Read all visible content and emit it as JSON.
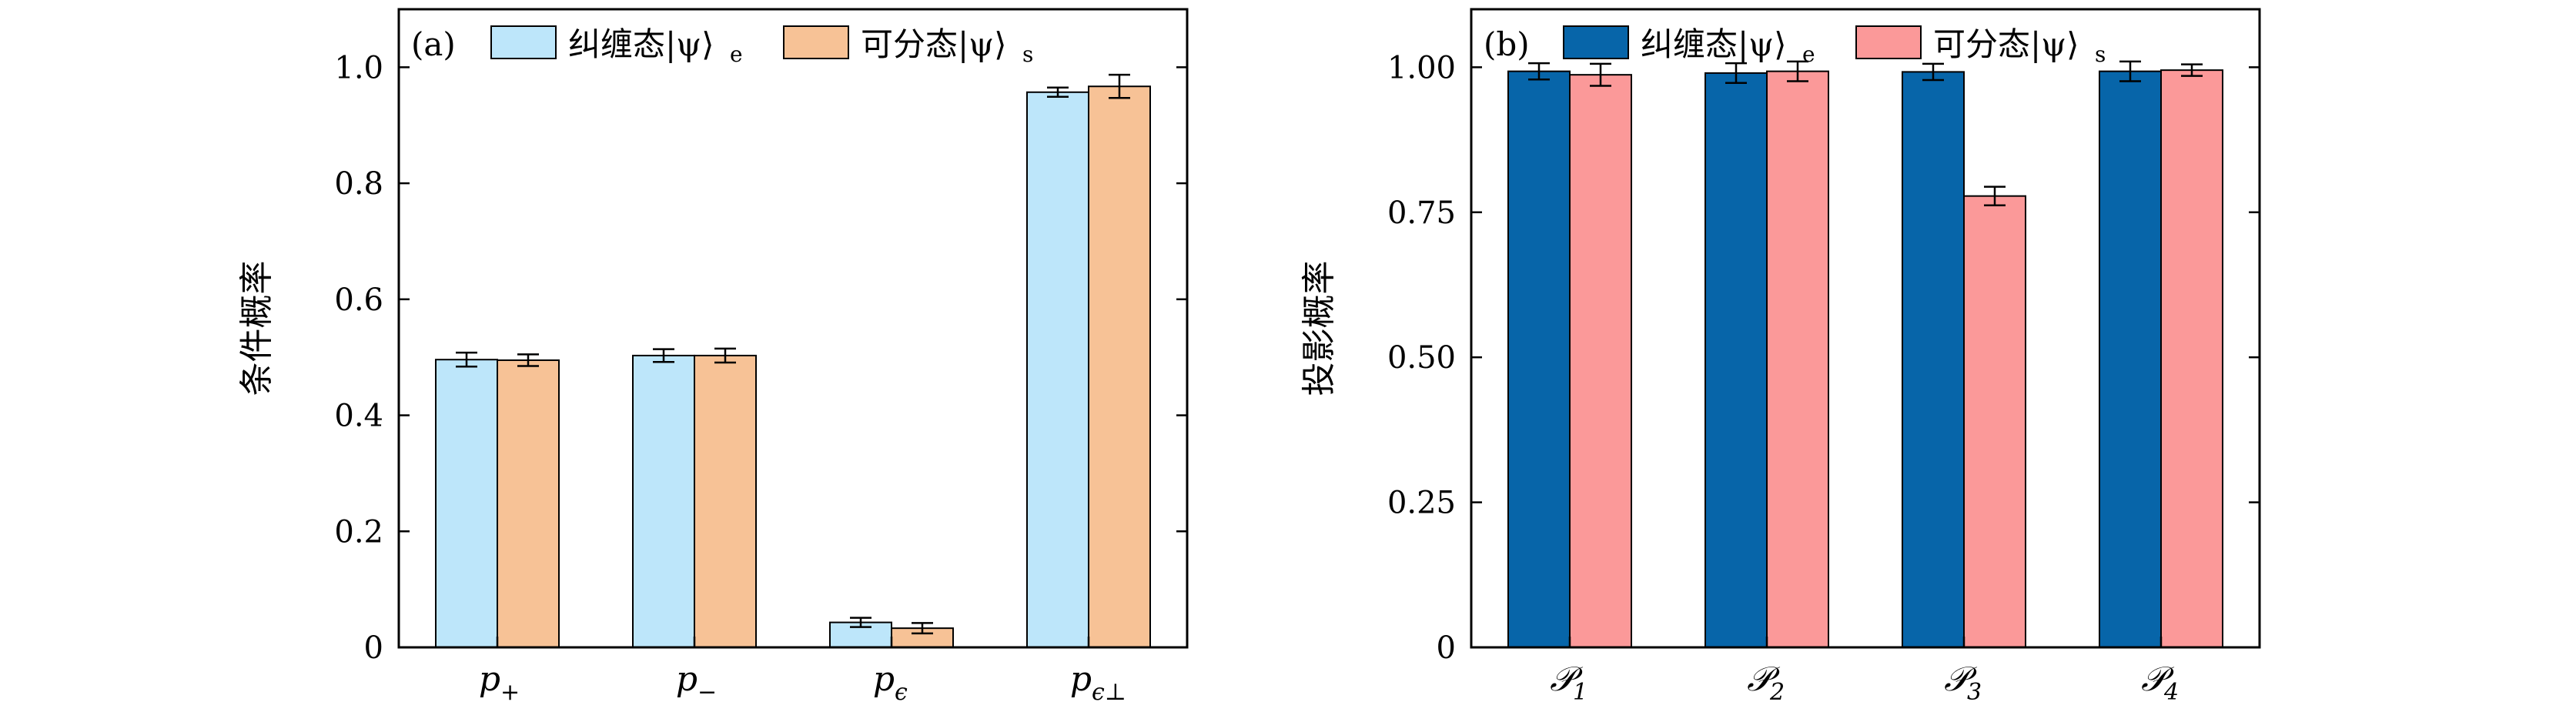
{
  "chart_data": [
    {
      "type": "bar",
      "panel_label": "(a)",
      "ylabel": "条件概率",
      "ylim": [
        0,
        1.1
      ],
      "y_ticks": [
        {
          "value": 0,
          "label": "0"
        },
        {
          "value": 0.2,
          "label": "0.2"
        },
        {
          "value": 0.4,
          "label": "0.4"
        },
        {
          "value": 0.6,
          "label": "0.6"
        },
        {
          "value": 0.8,
          "label": "0.8"
        },
        {
          "value": 1.0,
          "label": "1.0"
        }
      ],
      "categories": [
        {
          "main": "p",
          "sub": "+"
        },
        {
          "main": "p",
          "sub": "−"
        },
        {
          "main": "p",
          "sub": "ϵ"
        },
        {
          "main": "p",
          "sub": "ϵ⊥"
        }
      ],
      "series": [
        {
          "name": "纠缠态|ψ⟩",
          "name_sub": "e",
          "color": "#bde6fa",
          "values": [
            0.496,
            0.503,
            0.043,
            0.957
          ],
          "errors": [
            0.012,
            0.011,
            0.008,
            0.008
          ]
        },
        {
          "name": "可分态|ψ⟩",
          "name_sub": "s",
          "color": "#f7c296",
          "values": [
            0.495,
            0.503,
            0.033,
            0.967
          ],
          "errors": [
            0.01,
            0.012,
            0.009,
            0.02
          ]
        }
      ],
      "legend_position": "top-left",
      "grid": false
    },
    {
      "type": "bar",
      "panel_label": "(b)",
      "ylabel": "投影概率",
      "ylim": [
        0,
        1.1
      ],
      "y_ticks": [
        {
          "value": 0,
          "label": "0"
        },
        {
          "value": 0.25,
          "label": "0.25"
        },
        {
          "value": 0.5,
          "label": "0.50"
        },
        {
          "value": 0.75,
          "label": "0.75"
        },
        {
          "value": 1.0,
          "label": "1.00"
        }
      ],
      "categories": [
        {
          "main": "𝒫",
          "sub": "1"
        },
        {
          "main": "𝒫",
          "sub": "2"
        },
        {
          "main": "𝒫",
          "sub": "3"
        },
        {
          "main": "𝒫",
          "sub": "4"
        }
      ],
      "series": [
        {
          "name": "纠缠态|ψ⟩",
          "name_sub": "e",
          "color": "#0765a9",
          "values": [
            0.993,
            0.99,
            0.992,
            0.993
          ],
          "errors": [
            0.014,
            0.017,
            0.014,
            0.017
          ]
        },
        {
          "name": "可分态|ψ⟩",
          "name_sub": "s",
          "color": "#fb9999",
          "values": [
            0.987,
            0.993,
            0.778,
            0.995
          ],
          "errors": [
            0.019,
            0.017,
            0.016,
            0.01
          ]
        }
      ],
      "legend_position": "top-left",
      "grid": false
    }
  ]
}
